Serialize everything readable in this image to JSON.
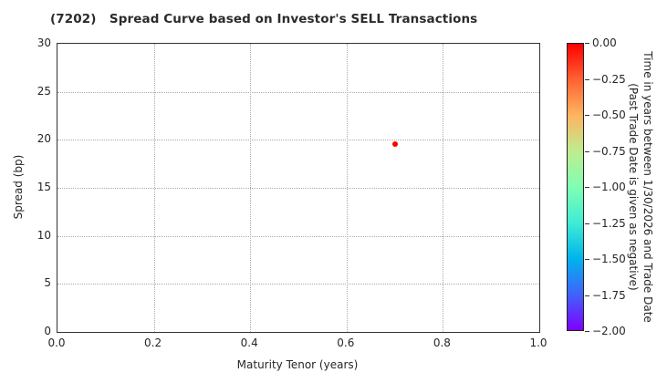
{
  "chart_data": {
    "type": "scatter",
    "title": "(7202)   Spread Curve based on Investor's SELL Transactions",
    "xlabel": "Maturity Tenor (years)",
    "ylabel": "Spread (bp)",
    "xlim": [
      0.0,
      1.0
    ],
    "ylim": [
      0,
      30
    ],
    "x_ticks": [
      "0.0",
      "0.2",
      "0.4",
      "0.6",
      "0.8",
      "1.0"
    ],
    "y_ticks": [
      "0",
      "5",
      "10",
      "15",
      "20",
      "25",
      "30"
    ],
    "grid": true,
    "grid_style": "dotted",
    "legend": "none",
    "points": [
      {
        "maturity_tenor_years": 0.7,
        "spread_bp": 19.6,
        "color": "#ff0000",
        "colorbar_value_approx": 0.0
      }
    ],
    "colorbar": {
      "label_line1": "Time in years between 1/30/2026 and Trade Date",
      "label_line2": "(Past Trade Date is given as negative)",
      "ticks": [
        "0.00",
        "−0.25",
        "−0.50",
        "−0.75",
        "−1.00",
        "−1.25",
        "−1.50",
        "−1.75",
        "−2.00"
      ],
      "value_top": 0.0,
      "value_bottom": -2.0,
      "colormap": "rainbow",
      "gradient_top_to_bottom": [
        "#ff0000",
        "#ff6232",
        "#ffb462",
        "#bfec8e",
        "#80ffb4",
        "#40ecd4",
        "#00b4ec",
        "#4062fa",
        "#8000ff"
      ]
    },
    "colors": {
      "background": "#ffffff",
      "spine": "#333333",
      "gridline": "#aaaaaa",
      "text": "#262626"
    }
  }
}
